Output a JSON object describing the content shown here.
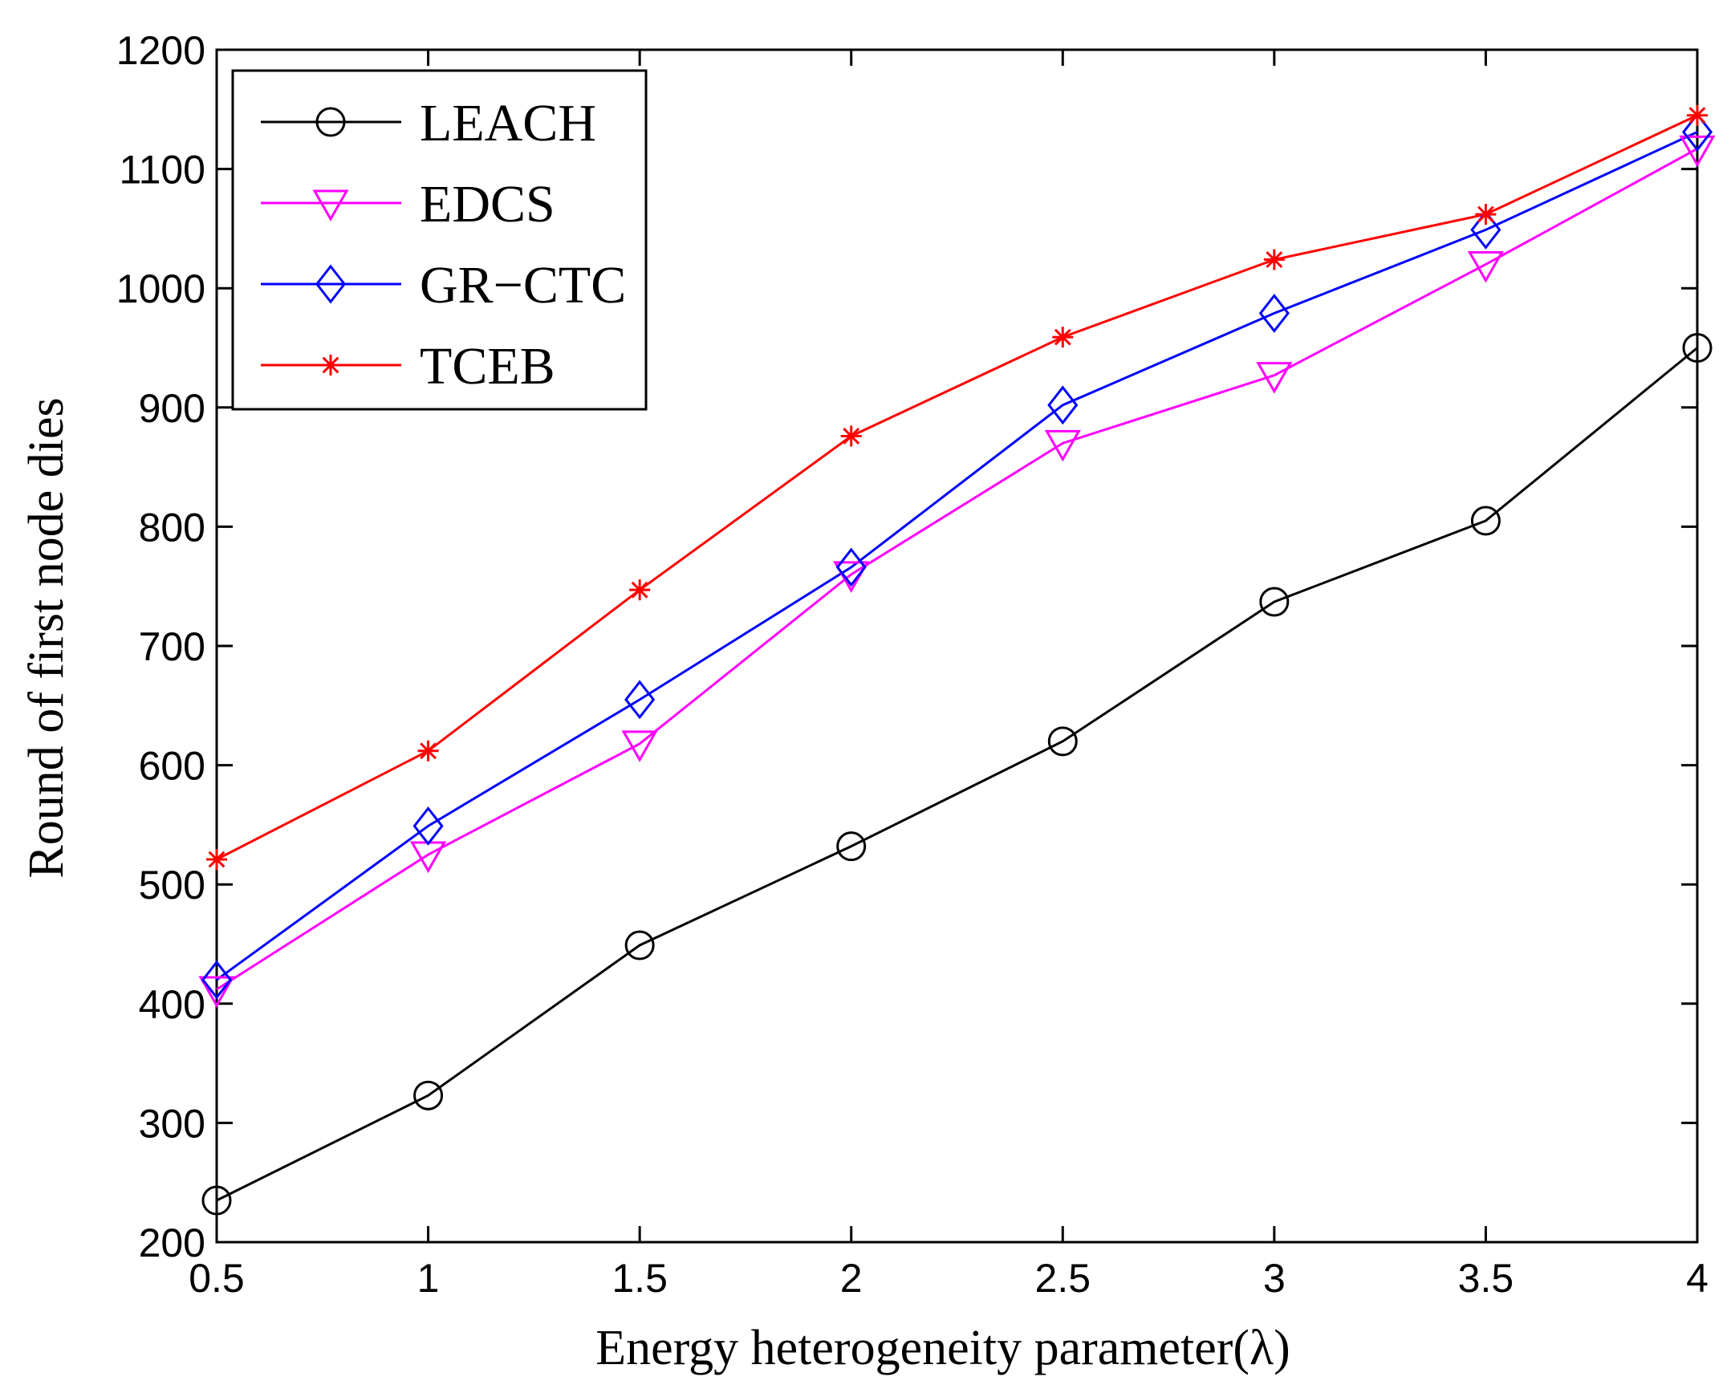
{
  "chart_data": {
    "type": "line",
    "xlabel": "Energy heterogeneity parameter(λ)",
    "ylabel": "Round of first node dies",
    "xlim": [
      0.5,
      4
    ],
    "ylim": [
      200,
      1200
    ],
    "x": [
      0.5,
      1,
      1.5,
      2,
      2.5,
      3,
      3.5,
      4
    ],
    "x_tick_labels": [
      "0.5",
      "1",
      "1.5",
      "2",
      "2.5",
      "3",
      "3.5",
      "4"
    ],
    "y_tick_labels": [
      "200",
      "300",
      "400",
      "500",
      "600",
      "700",
      "800",
      "900",
      "1000",
      "1100",
      "1200"
    ],
    "grid": false,
    "legend_position": "top-left",
    "series": [
      {
        "name": "LEACH",
        "color": "#000000",
        "marker": "circle",
        "values": [
          235,
          323,
          449,
          532,
          620,
          737,
          805,
          950
        ]
      },
      {
        "name": "EDCS",
        "color": "#ff00ff",
        "marker": "triangle-down",
        "values": [
          412,
          525,
          618,
          760,
          870,
          927,
          1020,
          1117
        ]
      },
      {
        "name": "GR−CTC",
        "color": "#0000ff",
        "marker": "diamond",
        "values": [
          420,
          549,
          655,
          766,
          902,
          979,
          1049,
          1131
        ]
      },
      {
        "name": "TCEB",
        "color": "#ff0000",
        "marker": "star",
        "values": [
          521,
          612,
          747,
          876,
          959,
          1024,
          1062,
          1145
        ]
      }
    ]
  }
}
